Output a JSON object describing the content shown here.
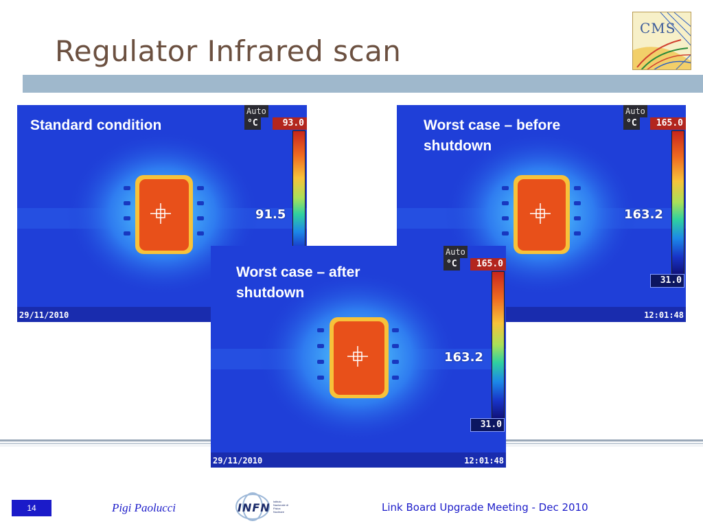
{
  "slide": {
    "title": "Regulator Infrared scan",
    "page_number": "14",
    "author": "Pigi Paolucci",
    "meeting": "Link Board Upgrade Meeting - Dec 2010",
    "cms_logo_text": "CMS",
    "infn_logo_text": "INFN",
    "infn_subtext": "Istituto Nazionale di Fisica Nucleare"
  },
  "images": [
    {
      "caption": "Standard condition",
      "auto": "Auto",
      "unit": "°C",
      "max": "93.0",
      "reading": "91.5",
      "min": "",
      "date": "29/11/2010",
      "time": ""
    },
    {
      "caption": "Worst case – before shutdown",
      "auto": "Auto",
      "unit": "°C",
      "max": "165.0",
      "reading": "163.2",
      "min": "31.0",
      "date": "",
      "time": "12:01:48"
    },
    {
      "caption": "Worst case – after shutdown",
      "auto": "Auto",
      "unit": "°C",
      "max": "165.0",
      "reading": "163.2",
      "min": "31.0",
      "date": "29/11/2010",
      "time": "12:01:48"
    }
  ],
  "colors": {
    "title": "#6b5040",
    "title_bar": "#9fb8cc",
    "accent_blue": "#1b1bc9",
    "thermal_bg": "#1f3fd8",
    "hot_spot": "#e8501a"
  }
}
